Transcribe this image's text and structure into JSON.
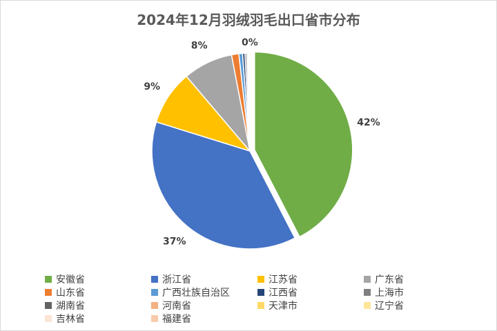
{
  "chart_data": {
    "type": "pie",
    "title": "2024年12月羽绒羽毛出口省市分布",
    "series": [
      {
        "name": "安徽省",
        "value": 42.4,
        "label": "42%",
        "color": "#70ad47",
        "exploded": true
      },
      {
        "name": "浙江省",
        "value": 37.4,
        "label": "37%",
        "color": "#4472c4"
      },
      {
        "name": "江苏省",
        "value": 9.0,
        "label": "9%",
        "color": "#ffc000"
      },
      {
        "name": "广东省",
        "value": 8.2,
        "label": "8%",
        "color": "#a5a5a5"
      },
      {
        "name": "山东省",
        "value": 1.2,
        "color": "#ed7d31"
      },
      {
        "name": "广西壮族自治区",
        "value": 0.6,
        "color": "#5b9bd5"
      },
      {
        "name": "江西省",
        "value": 0.4,
        "color": "#264478"
      },
      {
        "name": "上海市",
        "value": 0.3,
        "color": "#7f7f7f"
      },
      {
        "name": "湖南省",
        "value": 0.2,
        "color": "#636363"
      },
      {
        "name": "河南省",
        "value": 0.1,
        "color": "#f4b183"
      },
      {
        "name": "天津市",
        "value": 0.1,
        "color": "#ffd966"
      },
      {
        "name": "辽宁省",
        "value": 0.05,
        "color": "#ffe699"
      },
      {
        "name": "吉林省",
        "value": 0.03,
        "color": "#fbe5d6"
      },
      {
        "name": "福建省",
        "value": 0.02,
        "label": "0%",
        "color": "#f8cbad"
      }
    ],
    "legend_position": "bottom"
  }
}
